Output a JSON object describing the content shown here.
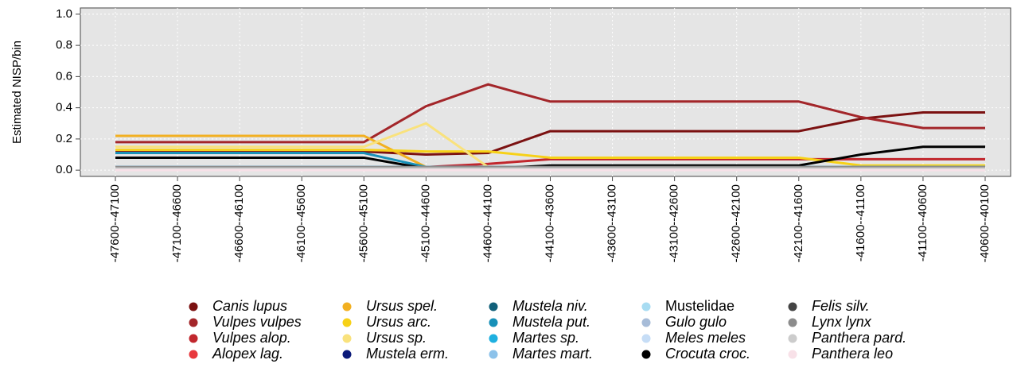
{
  "chart_data": {
    "type": "line",
    "y_label": "Estimated NISP/bin",
    "categories": [
      "-47600--47100",
      "-47100--46600",
      "-46600--46100",
      "-46100--45600",
      "-45600--45100",
      "-45100--44600",
      "-44600--44100",
      "-44100--43600",
      "-43600--43100",
      "-43100--42600",
      "-42600--42100",
      "-42100--41600",
      "-41600--41100",
      "-41100--40600",
      "-40600--40100"
    ],
    "ylim": [
      -0.04,
      1.04
    ],
    "yticks": [
      {
        "value": 0,
        "label": "0.0"
      },
      {
        "value": 0.2,
        "label": "0.2"
      },
      {
        "value": 0.4,
        "label": "0.4"
      },
      {
        "value": 0.6,
        "label": "0.6"
      },
      {
        "value": 0.8,
        "label": "0.8"
      },
      {
        "value": 1,
        "label": "1.0"
      }
    ],
    "grid": true,
    "series": [
      {
        "name": "Canis lupus",
        "color": "#7b1111",
        "values": [
          0.12,
          0.12,
          0.12,
          0.12,
          0.12,
          0.1,
          0.11,
          0.25,
          0.25,
          0.25,
          0.25,
          0.25,
          0.33,
          0.37,
          0.37
        ]
      },
      {
        "name": "Vulpes vulpes",
        "color": "#a3262a",
        "values": [
          0.18,
          0.18,
          0.18,
          0.18,
          0.18,
          0.41,
          0.55,
          0.44,
          0.44,
          0.44,
          0.44,
          0.44,
          0.34,
          0.27,
          0.27
        ]
      },
      {
        "name": "Vulpes alop.",
        "color": "#c1272d",
        "values": [
          0.01,
          0.01,
          0.01,
          0.01,
          0.01,
          0.02,
          0.04,
          0.07,
          0.07,
          0.07,
          0.07,
          0.07,
          0.07,
          0.07,
          0.07
        ]
      },
      {
        "name": "Alopex lag.",
        "color": "#e8383d",
        "values": [
          0.01,
          0.01,
          0.01,
          0.01,
          0.01,
          0.01,
          0.01,
          0.01,
          0.01,
          0.01,
          0.01,
          0.01,
          0.01,
          0.01,
          0.01
        ]
      },
      {
        "name": "Ursus spel.",
        "color": "#f2b021",
        "values": [
          0.22,
          0.22,
          0.22,
          0.22,
          0.22,
          0.02,
          0.02,
          0.02,
          0.02,
          0.02,
          0.02,
          0.02,
          0.02,
          0.02,
          0.02
        ]
      },
      {
        "name": "Ursus arc.",
        "color": "#f7d117",
        "values": [
          0.13,
          0.13,
          0.13,
          0.13,
          0.13,
          0.12,
          0.12,
          0.08,
          0.08,
          0.08,
          0.08,
          0.08,
          0.03,
          0.03,
          0.03
        ]
      },
      {
        "name": "Ursus sp.",
        "color": "#f9e27d",
        "values": [
          0.15,
          0.15,
          0.15,
          0.15,
          0.15,
          0.3,
          0.02,
          0.02,
          0.02,
          0.02,
          0.02,
          0.02,
          0.02,
          0.02,
          0.02
        ]
      },
      {
        "name": "Mustela erm.",
        "color": "#0b1a7a",
        "values": [
          0.01,
          0.01,
          0.01,
          0.01,
          0.01,
          0.01,
          0.01,
          0.01,
          0.01,
          0.01,
          0.01,
          0.01,
          0.01,
          0.01,
          0.01
        ]
      },
      {
        "name": "Mustela niv.",
        "color": "#11607a",
        "values": [
          0.02,
          0.02,
          0.02,
          0.02,
          0.02,
          0.02,
          0.02,
          0.02,
          0.02,
          0.02,
          0.02,
          0.02,
          0.02,
          0.02,
          0.02
        ]
      },
      {
        "name": "Mustela put.",
        "color": "#1790b8",
        "values": [
          0.11,
          0.11,
          0.11,
          0.11,
          0.11,
          0.02,
          0.02,
          0.02,
          0.02,
          0.02,
          0.02,
          0.02,
          0.02,
          0.02,
          0.02
        ]
      },
      {
        "name": "Martes sp.",
        "color": "#1eb0e0",
        "values": [
          0.02,
          0.02,
          0.02,
          0.02,
          0.02,
          0.02,
          0.02,
          0.02,
          0.02,
          0.02,
          0.02,
          0.02,
          0.02,
          0.02,
          0.02
        ]
      },
      {
        "name": "Martes mart.",
        "color": "#8cc2ea",
        "values": [
          0.02,
          0.02,
          0.02,
          0.02,
          0.02,
          0.02,
          0.02,
          0.02,
          0.02,
          0.02,
          0.02,
          0.02,
          0.02,
          0.02,
          0.02
        ]
      },
      {
        "name": "Mustelidae",
        "color": "#a8dcf2",
        "values": [
          0.01,
          0.01,
          0.01,
          0.01,
          0.01,
          0.01,
          0.01,
          0.01,
          0.01,
          0.01,
          0.01,
          0.01,
          0.01,
          0.01,
          0.01
        ]
      },
      {
        "name": "Gulo gulo",
        "color": "#a7bcd8",
        "values": [
          0.01,
          0.01,
          0.01,
          0.01,
          0.01,
          0.01,
          0.01,
          0.01,
          0.01,
          0.01,
          0.01,
          0.01,
          0.01,
          0.01,
          0.01
        ]
      },
      {
        "name": "Meles meles",
        "color": "#c6ddf6",
        "values": [
          0.01,
          0.01,
          0.01,
          0.01,
          0.01,
          0.01,
          0.01,
          0.01,
          0.01,
          0.01,
          0.01,
          0.01,
          0.01,
          0.01,
          0.01
        ]
      },
      {
        "name": "Crocuta croc.",
        "color": "#000000",
        "values": [
          0.08,
          0.08,
          0.08,
          0.08,
          0.08,
          0.01,
          0.01,
          0.03,
          0.03,
          0.03,
          0.03,
          0.03,
          0.1,
          0.15,
          0.15
        ]
      },
      {
        "name": "Felis silv.",
        "color": "#444444",
        "values": [
          0.01,
          0.01,
          0.01,
          0.01,
          0.01,
          0.01,
          0.01,
          0.01,
          0.01,
          0.01,
          0.01,
          0.01,
          0.01,
          0.01,
          0.01
        ]
      },
      {
        "name": "Lynx lynx",
        "color": "#8c8c8c",
        "values": [
          0.02,
          0.02,
          0.02,
          0.02,
          0.02,
          0.02,
          0.02,
          0.02,
          0.02,
          0.02,
          0.02,
          0.02,
          0.02,
          0.02,
          0.02
        ]
      },
      {
        "name": "Panthera pard.",
        "color": "#cccccc",
        "values": [
          0.01,
          0.01,
          0.01,
          0.01,
          0.01,
          0.01,
          0.01,
          0.01,
          0.01,
          0.01,
          0.01,
          0.01,
          0.01,
          0.01,
          0.01
        ]
      },
      {
        "name": "Panthera leo",
        "color": "#f8e1e8",
        "values": [
          0,
          0,
          0,
          0,
          0,
          0,
          0,
          0,
          0,
          0,
          0,
          0,
          0,
          0,
          0
        ]
      }
    ]
  }
}
